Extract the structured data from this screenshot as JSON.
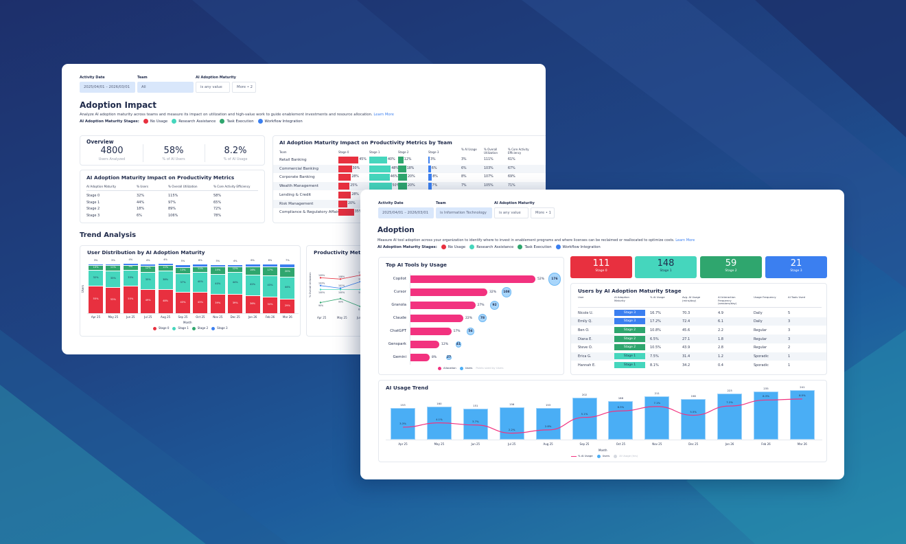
{
  "colors": {
    "stage0": "#e8303f",
    "stage1": "#45d6bd",
    "stage2": "#2fa66e",
    "stage3": "#3b7ff0",
    "allocation": "#f2327f",
    "users": "#4aaef5"
  },
  "back": {
    "filters": [
      {
        "label": "Activity Date",
        "value": "2025/04/01 – 2026/03/01"
      },
      {
        "label": "Team",
        "value": "All"
      },
      {
        "label": "AI Adoption Maturity",
        "value": "is any value"
      },
      {
        "label": "",
        "value": "More • 2"
      }
    ],
    "title": "Adoption Impact",
    "description": "Analyze AI adoption maturity across teams and measure its impact on utilization and high-value work to guide enablement investments and resource allocation.",
    "learn_more": "Learn More",
    "legend_label": "AI Adoption Maturity Stages:",
    "legend": [
      "No Usage",
      "Research Assistance",
      "Task Execution",
      "Workflow Integration"
    ],
    "overview": {
      "title": "Overview",
      "stats": [
        {
          "value": "4800",
          "label": "Users Analyzed"
        },
        {
          "value": "58%",
          "label": "% of AI Users"
        },
        {
          "value": "8.2%",
          "label": "% of AI Usage"
        }
      ]
    },
    "metrics": {
      "title": "AI Adoption Maturity Impact on Productivity Metrics",
      "headers": [
        "AI Adoption Maturity",
        "% Users",
        "% Overall Utilization",
        "% Core Activity Efficiency"
      ],
      "rows": [
        [
          "Stage 0",
          "32%",
          "115%",
          "58%"
        ],
        [
          "Stage 1",
          "44%",
          "97%",
          "65%"
        ],
        [
          "Stage 2",
          "18%",
          "89%",
          "72%"
        ],
        [
          "Stage 3",
          "6%",
          "106%",
          "78%"
        ]
      ]
    },
    "team_table": {
      "title": "AI Adoption Maturity Impact on Productivity Metrics by Team",
      "headers": [
        "Team",
        "Stage 0",
        "Stage 1",
        "Stage 2",
        "Stage 3",
        "% AI Usage",
        "% Overall Utilization",
        "% Core Activity Efficiency"
      ],
      "rows": [
        {
          "team": "Retail Banking",
          "s0": 45,
          "s1": 40,
          "s2": 12,
          "s3": 3,
          "ai": "3%",
          "util": "111%",
          "eff": "61%"
        },
        {
          "team": "Commercial Banking",
          "s0": 30,
          "s1": 48,
          "s2": 18,
          "s3": 6,
          "ai": "6%",
          "util": "103%",
          "eff": "67%"
        },
        {
          "team": "Corporate Banking",
          "s0": 28,
          "s1": 46,
          "s2": 20,
          "s3": 8,
          "ai": "8%",
          "util": "107%",
          "eff": "69%"
        },
        {
          "team": "Wealth Management",
          "s0": 25,
          "s1": 50,
          "s2": 20,
          "s3": 7,
          "ai": "7%",
          "util": "105%",
          "eff": "71%"
        },
        {
          "team": "Lending & Credit",
          "s0": 28
        },
        {
          "team": "Risk Management",
          "s0": 20
        },
        {
          "team": "Compliance & Regulatory Affairs",
          "s0": 35
        }
      ]
    },
    "trend_title": "Trend Analysis",
    "productivity_title": "Productivity Metrics"
  },
  "front": {
    "filters": [
      {
        "label": "Activity Date",
        "value": "2025/04/01 – 2026/03/01"
      },
      {
        "label": "Team",
        "value": "is Information Technology"
      },
      {
        "label": "AI Adoption Maturity",
        "value": "is any value"
      },
      {
        "label": "",
        "value": "More • 1"
      }
    ],
    "title": "Adoption",
    "description": "Measure AI tool adoption across your organization to identify where to invest in enablement programs and where licenses can be reclaimed or reallocated to optimize costs.",
    "learn_more": "Learn More",
    "legend_label": "AI Adoption Maturity Stages:",
    "legend": [
      "No Usage",
      "Research Assistance",
      "Task Execution",
      "Workflow Integration"
    ],
    "stage_tiles": [
      {
        "value": "111",
        "label": "Stage 0"
      },
      {
        "value": "148",
        "label": "Stage 1"
      },
      {
        "value": "59",
        "label": "Stage 2"
      },
      {
        "value": "21",
        "label": "Stage 3"
      }
    ],
    "users_table": {
      "title": "Users by AI Adoption Maturity Stage",
      "headers": [
        "User",
        "AI Adoption Maturity",
        "% AI Usage",
        "Avg. AI Usage (mins/day)",
        "AI Interaction Frequency (sessions/day)",
        "Usage Frequency",
        "AI Tools Used"
      ],
      "rows": [
        [
          "Nicole U.",
          "Stage 3",
          "16.7%",
          "70.3",
          "4.9",
          "Daily",
          "5"
        ],
        [
          "Emily Q.",
          "Stage 3",
          "17.2%",
          "72.4",
          "6.1",
          "Daily",
          "3"
        ],
        [
          "Ben O.",
          "Stage 2",
          "10.8%",
          "45.6",
          "2.2",
          "Regular",
          "3"
        ],
        [
          "Diana E.",
          "Stage 2",
          "6.5%",
          "27.1",
          "1.8",
          "Regular",
          "3"
        ],
        [
          "Steve O.",
          "Stage 2",
          "10.5%",
          "43.9",
          "2.8",
          "Regular",
          "2"
        ],
        [
          "Erica G.",
          "Stage 1",
          "7.5%",
          "31.4",
          "1.2",
          "Sporadic",
          "1"
        ],
        [
          "Hannah E.",
          "Stage 1",
          "8.1%",
          "34.2",
          "0.4",
          "Sporadic",
          "1"
        ]
      ]
    }
  },
  "chart_data": [
    {
      "id": "user-distribution",
      "type": "bar",
      "stacked": true,
      "title": "User Distribution by AI Adoption Maturity",
      "xlabel": "Month",
      "ylabel": "Users",
      "categories": [
        "Apr 25",
        "May 25",
        "Jun 25",
        "Jul 25",
        "Aug 25",
        "Sep 25",
        "Oct 25",
        "Nov 25",
        "Dec 25",
        "Jan 26",
        "Feb 26",
        "Mar 26"
      ],
      "series": [
        {
          "name": "Stage 0",
          "values": [
            55,
            53,
            55,
            49,
            48,
            43,
            43,
            39,
            39,
            36,
            34,
            29
          ]
        },
        {
          "name": "Stage 1",
          "values": [
            32,
            33,
            33,
            35,
            38,
            37,
            40,
            40,
            44,
            42,
            43,
            44
          ]
        },
        {
          "name": "Stage 2",
          "values": [
            10,
            11,
            9,
            12,
            11,
            13,
            11,
            15,
            12,
            16,
            17,
            20
          ]
        },
        {
          "name": "Stage 3",
          "values": [
            3,
            3,
            4,
            4,
            4,
            5,
            6,
            5,
            4,
            6,
            6,
            7
          ]
        }
      ],
      "legend": "bottom"
    },
    {
      "id": "productivity-metrics",
      "type": "line",
      "title": "Productivity Metrics",
      "ylabel": "% Overall Utilization",
      "categories": [
        "Apr 25",
        "May 25",
        "Jun 25"
      ],
      "series": [
        {
          "values": [
            109,
            108,
            111
          ],
          "color": "#e8303f"
        },
        {
          "values": [
            103,
            101,
            106
          ],
          "color": "#3b7ff0"
        },
        {
          "values": [
            100,
            100,
            100
          ],
          "color": "#45d6bd"
        },
        {
          "values": [
            90,
            93,
            87
          ],
          "color": "#2fa66e"
        }
      ]
    },
    {
      "id": "top-ai-tools",
      "type": "bar",
      "orientation": "horizontal",
      "title": "Top AI Tools by Usage",
      "categories": [
        "Copilot",
        "Cursor",
        "Granola",
        "Claude",
        "ChatGPT",
        "Genspark",
        "Gemini"
      ],
      "series": [
        {
          "name": "Allocation",
          "values": [
            52,
            32,
            27,
            22,
            17,
            12,
            8
          ],
          "unit": "%"
        },
        {
          "name": "Users",
          "values": [
            176,
            108,
            92,
            78,
            56,
            41,
            27
          ]
        }
      ],
      "note": "Points sized by Users",
      "legend": "bottom"
    },
    {
      "id": "ai-usage-trend",
      "type": "bar",
      "title": "AI Usage Trend",
      "xlabel": "Month",
      "categories": [
        "Apr 25",
        "May 25",
        "Jun 25",
        "Jul 25",
        "Aug 25",
        "Sep 25",
        "Oct 25",
        "Nov 25",
        "Dec 25",
        "Jan 26",
        "Feb 26",
        "Mar 26"
      ],
      "series": [
        {
          "name": "Users",
          "type": "bar",
          "values": [
            153,
            160,
            151,
            156,
            153,
            202,
            188,
            211,
            198,
            223,
            235,
            241
          ]
        },
        {
          "name": "% AI Usage",
          "type": "line",
          "values": [
            3.3,
            4.1,
            3.7,
            2.2,
            2.8,
            5.1,
            6.3,
            7.1,
            5.5,
            7.2,
            8.3,
            8.5
          ]
        }
      ],
      "legend_extra": "AI Usage (hrs)",
      "legend": "bottom"
    }
  ]
}
